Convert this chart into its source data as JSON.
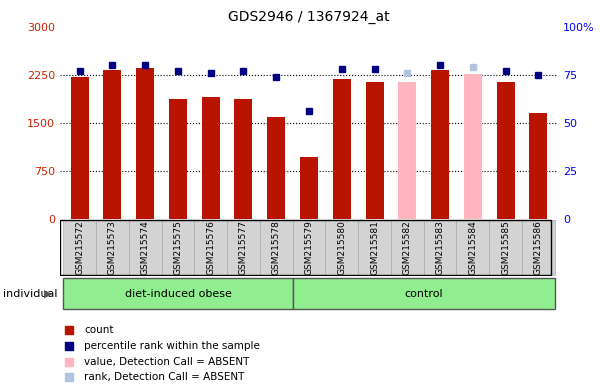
{
  "title": "GDS2946 / 1367924_at",
  "samples": [
    "GSM215572",
    "GSM215573",
    "GSM215574",
    "GSM215575",
    "GSM215576",
    "GSM215577",
    "GSM215578",
    "GSM215579",
    "GSM215580",
    "GSM215581",
    "GSM215582",
    "GSM215583",
    "GSM215584",
    "GSM215585",
    "GSM215586"
  ],
  "counts": [
    2210,
    2320,
    2350,
    1870,
    1910,
    1870,
    1590,
    960,
    2190,
    2140,
    2140,
    2330,
    2260,
    2140,
    1660
  ],
  "percentile_ranks": [
    77,
    80,
    80,
    77,
    76,
    77,
    74,
    56,
    78,
    78,
    76,
    80,
    79,
    77,
    75
  ],
  "absent_bar_flags": [
    false,
    false,
    false,
    false,
    false,
    false,
    false,
    false,
    false,
    false,
    true,
    false,
    true,
    false,
    false
  ],
  "absent_dot_flags": [
    false,
    false,
    false,
    false,
    false,
    false,
    false,
    false,
    false,
    false,
    true,
    false,
    true,
    false,
    false
  ],
  "group1_label": "diet-induced obese",
  "group1_count": 7,
  "group2_label": "control",
  "group2_count": 8,
  "ylim_left": [
    0,
    3000
  ],
  "ylim_right": [
    0,
    100
  ],
  "yticks_left": [
    0,
    750,
    1500,
    2250,
    3000
  ],
  "yticks_right": [
    0,
    25,
    50,
    75,
    100
  ],
  "bar_color_normal": "#b81400",
  "bar_color_absent": "#ffb6c1",
  "dot_color_normal": "#000080",
  "dot_color_absent": "#b0c4de",
  "legend_colors": [
    "#b81400",
    "#000080",
    "#ffb6c1",
    "#b0c4de"
  ],
  "legend_items": [
    "count",
    "percentile rank within the sample",
    "value, Detection Call = ABSENT",
    "rank, Detection Call = ABSENT"
  ],
  "individual_label": "individual",
  "background_plot": "#ffffff",
  "background_labels": "#d3d3d3",
  "background_group": "#90ee90",
  "grid_color": "#000000",
  "dotted_line_y": [
    750,
    1500,
    2250
  ]
}
